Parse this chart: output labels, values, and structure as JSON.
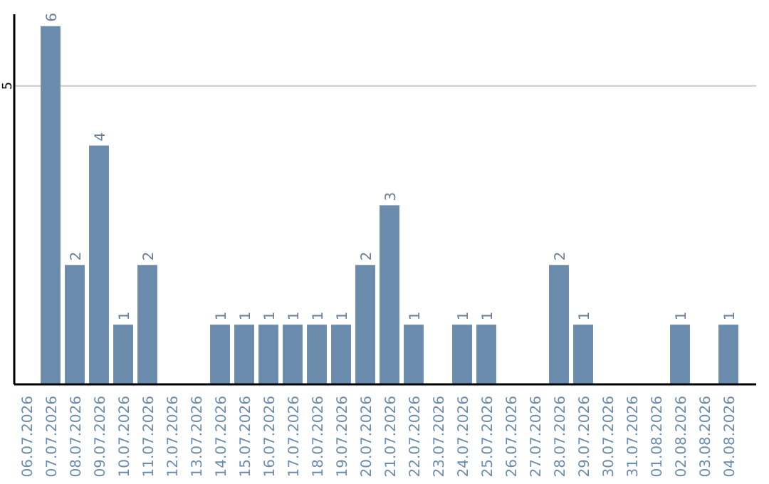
{
  "chart_data": {
    "type": "bar",
    "categories": [
      "06.07.2026",
      "07.07.2026",
      "08.07.2026",
      "09.07.2026",
      "10.07.2026",
      "11.07.2026",
      "12.07.2026",
      "13.07.2026",
      "14.07.2026",
      "15.07.2026",
      "16.07.2026",
      "17.07.2026",
      "18.07.2026",
      "19.07.2026",
      "20.07.2026",
      "21.07.2026",
      "22.07.2026",
      "23.07.2026",
      "24.07.2026",
      "25.07.2026",
      "26.07.2026",
      "27.07.2026",
      "28.07.2026",
      "29.07.2026",
      "30.07.2026",
      "31.07.2026",
      "01.08.2026",
      "02.08.2026",
      "03.08.2026",
      "04.08.2026"
    ],
    "values": [
      0,
      6,
      2,
      4,
      1,
      2,
      0,
      0,
      1,
      1,
      1,
      1,
      1,
      1,
      2,
      3,
      1,
      0,
      1,
      1,
      0,
      0,
      2,
      1,
      0,
      0,
      0,
      1,
      0,
      1
    ],
    "value_labels": [
      null,
      "6",
      "2",
      "4",
      "1",
      "2",
      null,
      null,
      "1",
      "1",
      "1",
      "1",
      "1",
      "1",
      "2",
      "3",
      "1",
      null,
      "1",
      "1",
      null,
      null,
      "2",
      "1",
      null,
      null,
      null,
      "1",
      null,
      "1"
    ],
    "color": "#6b8cad",
    "ylim": [
      0,
      6.2
    ],
    "yticks": [
      5
    ],
    "grid": "y"
  }
}
